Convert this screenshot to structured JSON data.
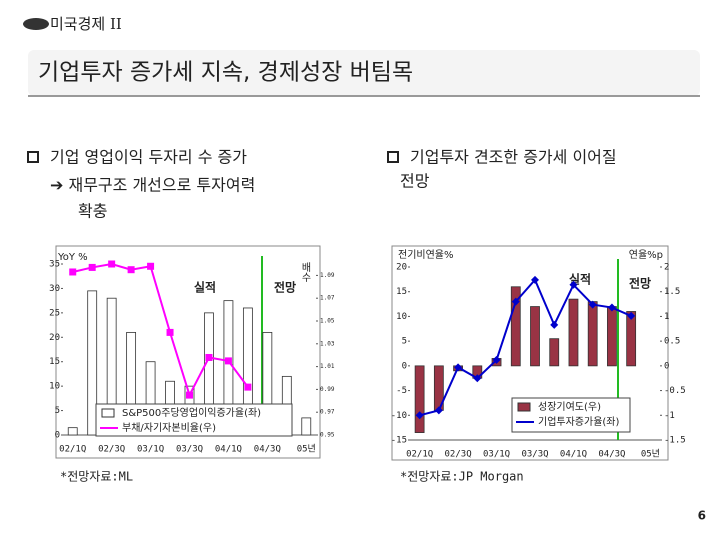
{
  "header": {
    "section": "미국경제 II",
    "title": "기업투자 증가세 지속, 경제성장 버팀목"
  },
  "bullets": {
    "left": [
      "기업 영업이익 두자리 수 증가",
      "➔ 재무구조 개선으로 투자여력",
      "확충"
    ],
    "right": [
      "기업투자 견조한 증가세 이어질",
      "전망"
    ]
  },
  "footnotes": [
    "*전망자료:ML",
    "*전망자료:JP Morgan"
  ],
  "page_number": "6",
  "chart_data": [
    {
      "type": "bar",
      "ylabel": "YoY %",
      "y2label": "배수",
      "annotations": [
        "실적",
        "전망"
      ],
      "categories": [
        "02/1Q",
        null,
        "02/3Q",
        null,
        "03/1Q",
        null,
        "03/3Q",
        null,
        "04/1Q",
        null,
        "04/3Q",
        null,
        "05년"
      ],
      "ylim": [
        0,
        35
      ],
      "yticks": [
        0,
        5,
        10,
        15,
        20,
        25,
        30,
        35
      ],
      "y2lim": [
        0.95,
        1.1
      ],
      "y2ticks": [
        0.95,
        0.97,
        0.99,
        1.01,
        1.03,
        1.05,
        1.07,
        1.09
      ],
      "series": [
        {
          "name": "S&P500주당영업이익증가율(좌)",
          "kind": "bar",
          "color": "#ffffff",
          "values": [
            1.5,
            29.5,
            28,
            21,
            15,
            11,
            10,
            25,
            27.5,
            26,
            21,
            12,
            3.5
          ]
        },
        {
          "name": "부채/자기자본비율(우)",
          "kind": "line",
          "axis": "y2",
          "color": "#ff00ff",
          "values": [
            1.093,
            1.097,
            1.1,
            1.095,
            1.098,
            1.04,
            0.985,
            1.018,
            1.015,
            0.992,
            null,
            null,
            null
          ]
        }
      ]
    },
    {
      "type": "bar",
      "ylabel": "전기비연율%",
      "y2label": "연율%p",
      "annotations": [
        "실적",
        "전망"
      ],
      "categories": [
        "02/1Q",
        null,
        "02/3Q",
        null,
        "03/1Q",
        null,
        "03/3Q",
        null,
        "04/1Q",
        null,
        "04/3Q",
        null,
        "05년"
      ],
      "ylim": [
        -15,
        20
      ],
      "yticks": [
        -15,
        -10,
        -5,
        0,
        5,
        10,
        15,
        20
      ],
      "y2lim": [
        -1.5,
        2
      ],
      "y2ticks": [
        -1.5,
        -1,
        -0.5,
        0,
        0.5,
        1,
        1.5,
        2
      ],
      "series": [
        {
          "name": "성장기여도(우)",
          "kind": "bar",
          "axis": "y2",
          "color": "#993344",
          "values": [
            -1.35,
            -0.9,
            -0.1,
            -0.25,
            0.15,
            1.6,
            1.2,
            0.55,
            1.35,
            1.3,
            1.2,
            1.1,
            null
          ]
        },
        {
          "name": "기업투자증가율(좌)",
          "kind": "line",
          "color": "#0000cc",
          "values": [
            -10,
            -9,
            -0.3,
            -2.5,
            1.2,
            13,
            17.4,
            8.3,
            16.4,
            12.4,
            11.8,
            10.1,
            null
          ]
        }
      ]
    }
  ]
}
